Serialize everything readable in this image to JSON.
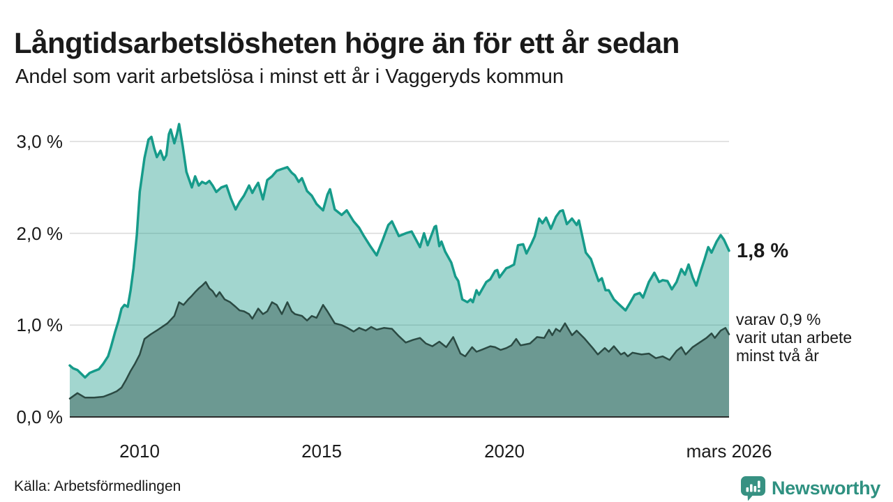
{
  "header": {
    "title": "Långtidsarbetslösheten högre än för ett år sedan",
    "subtitle": "Andel som varit arbetslösa i minst ett år i Vaggeryds kommun"
  },
  "annotations": {
    "primary": "1,8 %",
    "secondary_lines": [
      "varav 0,9 %",
      "varit utan arbete",
      "minst två år"
    ]
  },
  "footer": {
    "source": "Källa: Arbetsförmedlingen",
    "logo_text": "Newsworthy",
    "logo_icon": "newsworthy-speech-bubble-bar-chart-icon"
  },
  "colors": {
    "text": "#1a1a1a",
    "gridline": "#d9d9d9",
    "axis": "#2b2b2b",
    "teal_line": "#169b8a",
    "light_fill_result": "#a9d6ce",
    "dark_line": "#2b4a43",
    "dark_fill_result": "#6f9a93",
    "logo_teal": "#379182"
  },
  "chart_data": {
    "type": "area",
    "title": "Långtidsarbetslösheten högre än för ett år sedan",
    "subtitle": "Andel som varit arbetslösa i minst ett år i Vaggeryds kommun",
    "xlabel": "",
    "ylabel": "",
    "xlim": [
      2008.08,
      2026.17
    ],
    "ylim": [
      0,
      3.3
    ],
    "grid": true,
    "legend_position": "none",
    "y_ticks": [
      {
        "v": 0,
        "label": "0,0 %"
      },
      {
        "v": 1,
        "label": "1,0 %"
      },
      {
        "v": 2,
        "label": "2,0 %"
      },
      {
        "v": 3,
        "label": "3,0 %"
      }
    ],
    "x_ticks": [
      {
        "x": 2010,
        "label": "2010"
      },
      {
        "x": 2015,
        "label": "2015"
      },
      {
        "x": 2020,
        "label": "2020"
      },
      {
        "x": 2026.17,
        "label": "mars 2026"
      }
    ],
    "series": [
      {
        "id": "unemployed-min-one-year",
        "name": "Arbetslösa minst ett år",
        "end_value": 1.8,
        "end_label": "1,8 %",
        "line_color": "#169b8a",
        "line_width": 3.5,
        "fill_hex": "#229e8d",
        "fill_alpha": 0.42,
        "points": [
          [
            2008.08,
            0.56
          ],
          [
            2008.17,
            0.53
          ],
          [
            2008.29,
            0.51
          ],
          [
            2008.42,
            0.46
          ],
          [
            2008.5,
            0.43
          ],
          [
            2008.63,
            0.48
          ],
          [
            2008.75,
            0.5
          ],
          [
            2008.88,
            0.52
          ],
          [
            2009.0,
            0.58
          ],
          [
            2009.13,
            0.66
          ],
          [
            2009.21,
            0.76
          ],
          [
            2009.32,
            0.92
          ],
          [
            2009.42,
            1.05
          ],
          [
            2009.5,
            1.18
          ],
          [
            2009.58,
            1.22
          ],
          [
            2009.67,
            1.2
          ],
          [
            2009.75,
            1.38
          ],
          [
            2009.83,
            1.62
          ],
          [
            2009.92,
            1.98
          ],
          [
            2010.0,
            2.45
          ],
          [
            2010.13,
            2.82
          ],
          [
            2010.24,
            3.02
          ],
          [
            2010.32,
            3.05
          ],
          [
            2010.4,
            2.92
          ],
          [
            2010.47,
            2.83
          ],
          [
            2010.57,
            2.9
          ],
          [
            2010.66,
            2.8
          ],
          [
            2010.73,
            2.85
          ],
          [
            2010.8,
            3.08
          ],
          [
            2010.85,
            3.13
          ],
          [
            2010.95,
            2.98
          ],
          [
            2011.02,
            3.08
          ],
          [
            2011.08,
            3.19
          ],
          [
            2011.18,
            2.95
          ],
          [
            2011.28,
            2.67
          ],
          [
            2011.43,
            2.5
          ],
          [
            2011.52,
            2.62
          ],
          [
            2011.62,
            2.52
          ],
          [
            2011.71,
            2.56
          ],
          [
            2011.81,
            2.54
          ],
          [
            2011.91,
            2.57
          ],
          [
            2012.0,
            2.52
          ],
          [
            2012.1,
            2.45
          ],
          [
            2012.24,
            2.5
          ],
          [
            2012.38,
            2.52
          ],
          [
            2012.5,
            2.38
          ],
          [
            2012.63,
            2.26
          ],
          [
            2012.74,
            2.34
          ],
          [
            2012.86,
            2.41
          ],
          [
            2013.0,
            2.52
          ],
          [
            2013.09,
            2.44
          ],
          [
            2013.17,
            2.5
          ],
          [
            2013.25,
            2.55
          ],
          [
            2013.38,
            2.37
          ],
          [
            2013.5,
            2.58
          ],
          [
            2013.63,
            2.62
          ],
          [
            2013.76,
            2.68
          ],
          [
            2013.9,
            2.7
          ],
          [
            2014.05,
            2.72
          ],
          [
            2014.17,
            2.66
          ],
          [
            2014.26,
            2.63
          ],
          [
            2014.36,
            2.56
          ],
          [
            2014.45,
            2.6
          ],
          [
            2014.59,
            2.46
          ],
          [
            2014.72,
            2.41
          ],
          [
            2014.85,
            2.32
          ],
          [
            2015.03,
            2.25
          ],
          [
            2015.15,
            2.42
          ],
          [
            2015.22,
            2.48
          ],
          [
            2015.35,
            2.26
          ],
          [
            2015.54,
            2.2
          ],
          [
            2015.68,
            2.25
          ],
          [
            2015.87,
            2.13
          ],
          [
            2016.02,
            2.06
          ],
          [
            2016.15,
            1.97
          ],
          [
            2016.31,
            1.87
          ],
          [
            2016.5,
            1.76
          ],
          [
            2016.66,
            1.92
          ],
          [
            2016.82,
            2.09
          ],
          [
            2016.92,
            2.13
          ],
          [
            2017.11,
            1.97
          ],
          [
            2017.3,
            2.0
          ],
          [
            2017.46,
            2.02
          ],
          [
            2017.69,
            1.85
          ],
          [
            2017.8,
            2.0
          ],
          [
            2017.9,
            1.87
          ],
          [
            2018.09,
            2.07
          ],
          [
            2018.13,
            2.08
          ],
          [
            2018.22,
            1.86
          ],
          [
            2018.28,
            1.91
          ],
          [
            2018.38,
            1.8
          ],
          [
            2018.55,
            1.68
          ],
          [
            2018.66,
            1.53
          ],
          [
            2018.74,
            1.48
          ],
          [
            2018.85,
            1.28
          ],
          [
            2018.99,
            1.25
          ],
          [
            2019.08,
            1.28
          ],
          [
            2019.14,
            1.25
          ],
          [
            2019.24,
            1.38
          ],
          [
            2019.31,
            1.33
          ],
          [
            2019.51,
            1.47
          ],
          [
            2019.62,
            1.5
          ],
          [
            2019.75,
            1.59
          ],
          [
            2019.81,
            1.6
          ],
          [
            2019.87,
            1.52
          ],
          [
            2020.06,
            1.62
          ],
          [
            2020.13,
            1.63
          ],
          [
            2020.27,
            1.66
          ],
          [
            2020.38,
            1.87
          ],
          [
            2020.52,
            1.88
          ],
          [
            2020.61,
            1.78
          ],
          [
            2020.75,
            1.89
          ],
          [
            2020.84,
            1.97
          ],
          [
            2020.96,
            2.16
          ],
          [
            2021.05,
            2.11
          ],
          [
            2021.15,
            2.17
          ],
          [
            2021.28,
            2.05
          ],
          [
            2021.42,
            2.18
          ],
          [
            2021.53,
            2.24
          ],
          [
            2021.61,
            2.25
          ],
          [
            2021.72,
            2.1
          ],
          [
            2021.86,
            2.16
          ],
          [
            2021.99,
            2.09
          ],
          [
            2022.05,
            2.14
          ],
          [
            2022.11,
            2.03
          ],
          [
            2022.24,
            1.79
          ],
          [
            2022.38,
            1.72
          ],
          [
            2022.49,
            1.59
          ],
          [
            2022.59,
            1.48
          ],
          [
            2022.68,
            1.51
          ],
          [
            2022.78,
            1.38
          ],
          [
            2022.87,
            1.38
          ],
          [
            2023.01,
            1.28
          ],
          [
            2023.14,
            1.23
          ],
          [
            2023.33,
            1.16
          ],
          [
            2023.45,
            1.24
          ],
          [
            2023.58,
            1.33
          ],
          [
            2023.72,
            1.35
          ],
          [
            2023.81,
            1.3
          ],
          [
            2023.97,
            1.47
          ],
          [
            2024.12,
            1.57
          ],
          [
            2024.25,
            1.47
          ],
          [
            2024.35,
            1.49
          ],
          [
            2024.48,
            1.48
          ],
          [
            2024.6,
            1.39
          ],
          [
            2024.73,
            1.47
          ],
          [
            2024.86,
            1.61
          ],
          [
            2024.96,
            1.55
          ],
          [
            2025.06,
            1.66
          ],
          [
            2025.17,
            1.52
          ],
          [
            2025.27,
            1.43
          ],
          [
            2025.4,
            1.6
          ],
          [
            2025.5,
            1.72
          ],
          [
            2025.6,
            1.85
          ],
          [
            2025.69,
            1.79
          ],
          [
            2025.83,
            1.91
          ],
          [
            2025.94,
            1.98
          ],
          [
            2026.03,
            1.93
          ],
          [
            2026.17,
            1.81
          ]
        ]
      },
      {
        "id": "unemployed-min-two-years",
        "name": "Arbetslösa minst två år",
        "end_value": 0.9,
        "end_label": "varav 0,9 % varit utan arbete minst två år",
        "line_color": "#2b4a43",
        "line_width": 2.5,
        "fill_hex": "#1c3e36",
        "fill_alpha": 0.4,
        "points": [
          [
            2008.08,
            0.2
          ],
          [
            2008.29,
            0.26
          ],
          [
            2008.5,
            0.21
          ],
          [
            2008.75,
            0.21
          ],
          [
            2009.0,
            0.22
          ],
          [
            2009.2,
            0.25
          ],
          [
            2009.37,
            0.28
          ],
          [
            2009.5,
            0.32
          ],
          [
            2009.62,
            0.4
          ],
          [
            2009.75,
            0.5
          ],
          [
            2009.87,
            0.58
          ],
          [
            2010.0,
            0.68
          ],
          [
            2010.13,
            0.85
          ],
          [
            2010.3,
            0.9
          ],
          [
            2010.5,
            0.95
          ],
          [
            2010.76,
            1.02
          ],
          [
            2010.95,
            1.1
          ],
          [
            2011.08,
            1.25
          ],
          [
            2011.2,
            1.22
          ],
          [
            2011.33,
            1.28
          ],
          [
            2011.43,
            1.32
          ],
          [
            2011.52,
            1.36
          ],
          [
            2011.62,
            1.4
          ],
          [
            2011.71,
            1.43
          ],
          [
            2011.81,
            1.47
          ],
          [
            2011.91,
            1.4
          ],
          [
            2012.0,
            1.37
          ],
          [
            2012.1,
            1.31
          ],
          [
            2012.19,
            1.36
          ],
          [
            2012.33,
            1.28
          ],
          [
            2012.48,
            1.25
          ],
          [
            2012.63,
            1.2
          ],
          [
            2012.74,
            1.16
          ],
          [
            2012.86,
            1.15
          ],
          [
            2013.0,
            1.12
          ],
          [
            2013.09,
            1.07
          ],
          [
            2013.25,
            1.18
          ],
          [
            2013.38,
            1.12
          ],
          [
            2013.5,
            1.15
          ],
          [
            2013.63,
            1.25
          ],
          [
            2013.76,
            1.22
          ],
          [
            2013.9,
            1.12
          ],
          [
            2014.05,
            1.25
          ],
          [
            2014.17,
            1.15
          ],
          [
            2014.26,
            1.12
          ],
          [
            2014.45,
            1.1
          ],
          [
            2014.59,
            1.05
          ],
          [
            2014.72,
            1.1
          ],
          [
            2014.85,
            1.08
          ],
          [
            2015.03,
            1.22
          ],
          [
            2015.15,
            1.15
          ],
          [
            2015.35,
            1.02
          ],
          [
            2015.54,
            1.0
          ],
          [
            2015.7,
            0.97
          ],
          [
            2015.87,
            0.93
          ],
          [
            2016.02,
            0.97
          ],
          [
            2016.2,
            0.94
          ],
          [
            2016.35,
            0.98
          ],
          [
            2016.5,
            0.95
          ],
          [
            2016.7,
            0.97
          ],
          [
            2016.92,
            0.96
          ],
          [
            2017.11,
            0.88
          ],
          [
            2017.3,
            0.81
          ],
          [
            2017.5,
            0.84
          ],
          [
            2017.69,
            0.86
          ],
          [
            2017.85,
            0.8
          ],
          [
            2018.03,
            0.77
          ],
          [
            2018.22,
            0.82
          ],
          [
            2018.41,
            0.76
          ],
          [
            2018.6,
            0.87
          ],
          [
            2018.8,
            0.69
          ],
          [
            2018.93,
            0.66
          ],
          [
            2019.12,
            0.76
          ],
          [
            2019.24,
            0.71
          ],
          [
            2019.37,
            0.73
          ],
          [
            2019.62,
            0.77
          ],
          [
            2019.75,
            0.76
          ],
          [
            2019.9,
            0.73
          ],
          [
            2020.06,
            0.75
          ],
          [
            2020.2,
            0.78
          ],
          [
            2020.33,
            0.85
          ],
          [
            2020.45,
            0.78
          ],
          [
            2020.58,
            0.79
          ],
          [
            2020.71,
            0.8
          ],
          [
            2020.9,
            0.87
          ],
          [
            2021.1,
            0.86
          ],
          [
            2021.23,
            0.95
          ],
          [
            2021.32,
            0.89
          ],
          [
            2021.42,
            0.96
          ],
          [
            2021.53,
            0.93
          ],
          [
            2021.67,
            1.02
          ],
          [
            2021.86,
            0.89
          ],
          [
            2021.99,
            0.94
          ],
          [
            2022.19,
            0.86
          ],
          [
            2022.43,
            0.75
          ],
          [
            2022.57,
            0.68
          ],
          [
            2022.76,
            0.75
          ],
          [
            2022.87,
            0.71
          ],
          [
            2023.01,
            0.77
          ],
          [
            2023.2,
            0.68
          ],
          [
            2023.3,
            0.7
          ],
          [
            2023.39,
            0.66
          ],
          [
            2023.52,
            0.7
          ],
          [
            2023.77,
            0.68
          ],
          [
            2023.97,
            0.69
          ],
          [
            2024.16,
            0.64
          ],
          [
            2024.35,
            0.66
          ],
          [
            2024.54,
            0.62
          ],
          [
            2024.73,
            0.72
          ],
          [
            2024.86,
            0.76
          ],
          [
            2024.98,
            0.68
          ],
          [
            2025.17,
            0.76
          ],
          [
            2025.36,
            0.81
          ],
          [
            2025.55,
            0.86
          ],
          [
            2025.69,
            0.91
          ],
          [
            2025.78,
            0.86
          ],
          [
            2025.94,
            0.94
          ],
          [
            2026.07,
            0.97
          ],
          [
            2026.17,
            0.9
          ]
        ]
      }
    ]
  }
}
